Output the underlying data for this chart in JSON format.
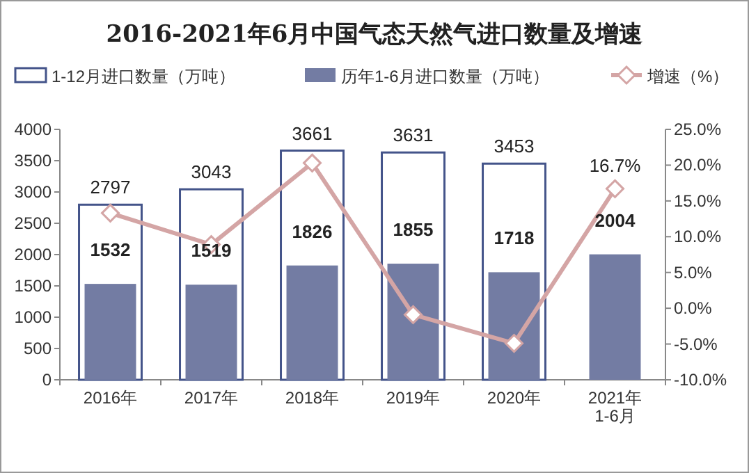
{
  "chart_data": {
    "type": "bar",
    "title": "2016-2021年6月中国气态天然气进口数量及增速",
    "categories": [
      "2016年",
      "2017年",
      "2018年",
      "2019年",
      "2020年",
      "2021年 1-6月"
    ],
    "series": [
      {
        "name": "1-12月进口数量（万吨）",
        "color": "#44548a",
        "values": [
          2797,
          3043,
          3661,
          3631,
          3453,
          null
        ],
        "value_labels": [
          "2797",
          "3043",
          "3661",
          "3631",
          "3453",
          null
        ]
      },
      {
        "name": "历年1-6月进口数量（万吨）",
        "color": "#737ca3",
        "values": [
          1532,
          1519,
          1826,
          1855,
          1718,
          2004
        ],
        "value_labels": [
          "1532",
          "1519",
          "1826",
          "1855",
          "1718",
          "2004"
        ]
      },
      {
        "name": "增速（%）",
        "type": "line",
        "axis": "y2",
        "color": "#d4a5a5",
        "marker": "diamond",
        "values": [
          13.3,
          8.9,
          20.3,
          -0.9,
          -4.9,
          16.7
        ],
        "value_labels": [
          null,
          null,
          null,
          null,
          null,
          "16.7%"
        ]
      }
    ],
    "ylim": [
      0,
      4000
    ],
    "yticks": [
      0,
      500,
      1000,
      1500,
      2000,
      2500,
      3000,
      3500,
      4000
    ],
    "y2lim": [
      -10,
      25
    ],
    "y2ticks": [
      {
        "value": -10,
        "label": "-10.0%"
      },
      {
        "value": -5,
        "label": "-5.0%"
      },
      {
        "value": 0,
        "label": "0.0%"
      },
      {
        "value": 5,
        "label": "5.0%"
      },
      {
        "value": 10,
        "label": "10.0%"
      },
      {
        "value": 15,
        "label": "15.0%"
      },
      {
        "value": 20,
        "label": "20.0%"
      },
      {
        "value": 25,
        "label": "25.0%"
      }
    ],
    "legend": "top",
    "grid": false
  }
}
